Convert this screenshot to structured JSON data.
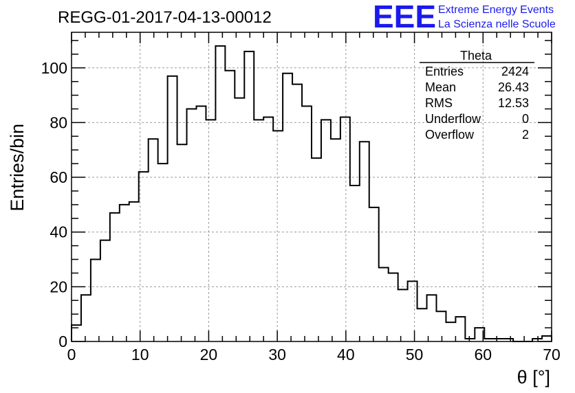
{
  "title": "REGG-01-2017-04-13-00012",
  "logo": {
    "mark": "EEE",
    "line1": "Extreme Energy Events",
    "line2": "La Scienza nelle Scuole",
    "color": "#1a1aee"
  },
  "stats": {
    "name": "Theta",
    "rows": [
      {
        "label": "Entries",
        "value": "2424"
      },
      {
        "label": "Mean",
        "value": "26.43"
      },
      {
        "label": "RMS",
        "value": "12.53"
      },
      {
        "label": "Underflow",
        "value": "0"
      },
      {
        "label": "Overflow",
        "value": "2"
      }
    ]
  },
  "chart_data": {
    "type": "bar",
    "style": "step-histogram",
    "xlabel": "θ [°]",
    "ylabel": "Entries/bin",
    "xlim": [
      0,
      70
    ],
    "ylim": [
      0,
      113
    ],
    "bin_width": 1.4,
    "x_ticks": [
      "0",
      "10",
      "20",
      "30",
      "40",
      "50",
      "60",
      "70"
    ],
    "y_ticks": [
      "0",
      "20",
      "40",
      "60",
      "80",
      "100"
    ],
    "grid": true,
    "values": [
      6,
      17,
      30,
      37,
      47,
      50,
      51,
      62,
      74,
      65,
      97,
      72,
      85,
      86,
      81,
      108,
      99,
      89,
      106,
      81,
      82,
      77,
      98,
      94,
      86,
      67,
      81,
      74,
      82,
      57,
      73,
      49,
      27,
      25,
      19,
      22,
      12,
      17,
      11,
      7,
      9,
      1,
      5,
      1,
      1,
      1,
      0,
      0,
      1,
      2
    ],
    "line_color": "#000000"
  }
}
